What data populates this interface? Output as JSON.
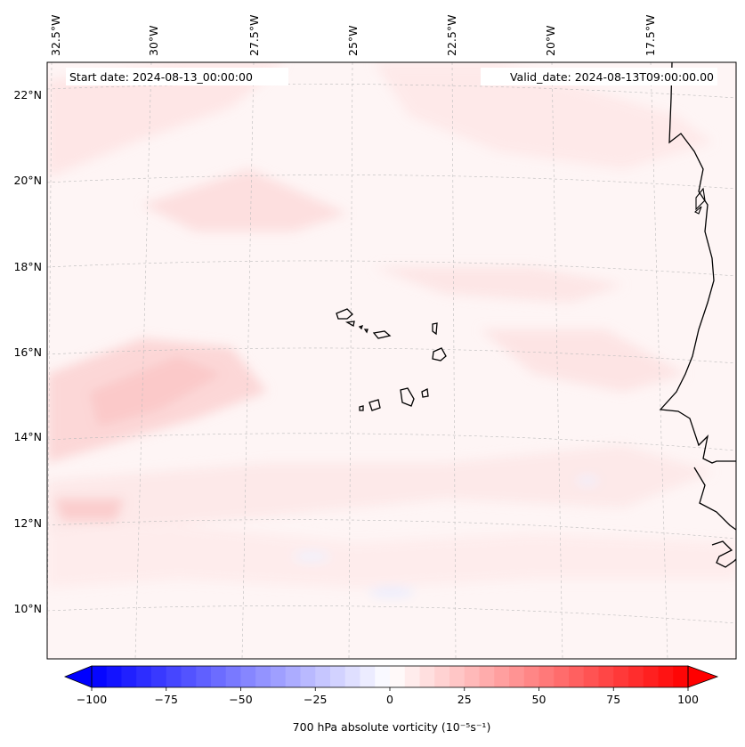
{
  "header": {
    "start_label": "Start date: 2024-08-13_00:00:00",
    "valid_label": "Valid_date: 2024-08-13T09:00:00.00"
  },
  "map": {
    "projection": "lambert-conformal",
    "lon_ticks": [
      "32.5°W",
      "30°W",
      "27.5°W",
      "25°W",
      "22.5°W",
      "20°W",
      "17.5°W"
    ],
    "lat_ticks": [
      "22°N",
      "20°N",
      "18°N",
      "16°N",
      "14°N",
      "12°N",
      "10°N"
    ],
    "gridlines": true,
    "features": [
      "cape-verde-islands",
      "west-africa-coastline"
    ]
  },
  "colorbar": {
    "label": "700 hPa absolute vorticity (10⁻⁵s⁻¹)",
    "ticks": [
      "−100",
      "−75",
      "−50",
      "−25",
      "0",
      "25",
      "50",
      "75",
      "100"
    ],
    "min": -100,
    "max": 100,
    "colors": {
      "low": "#0000ff",
      "mid": "#ffffff",
      "high": "#ff0000"
    },
    "extend": "both"
  }
}
